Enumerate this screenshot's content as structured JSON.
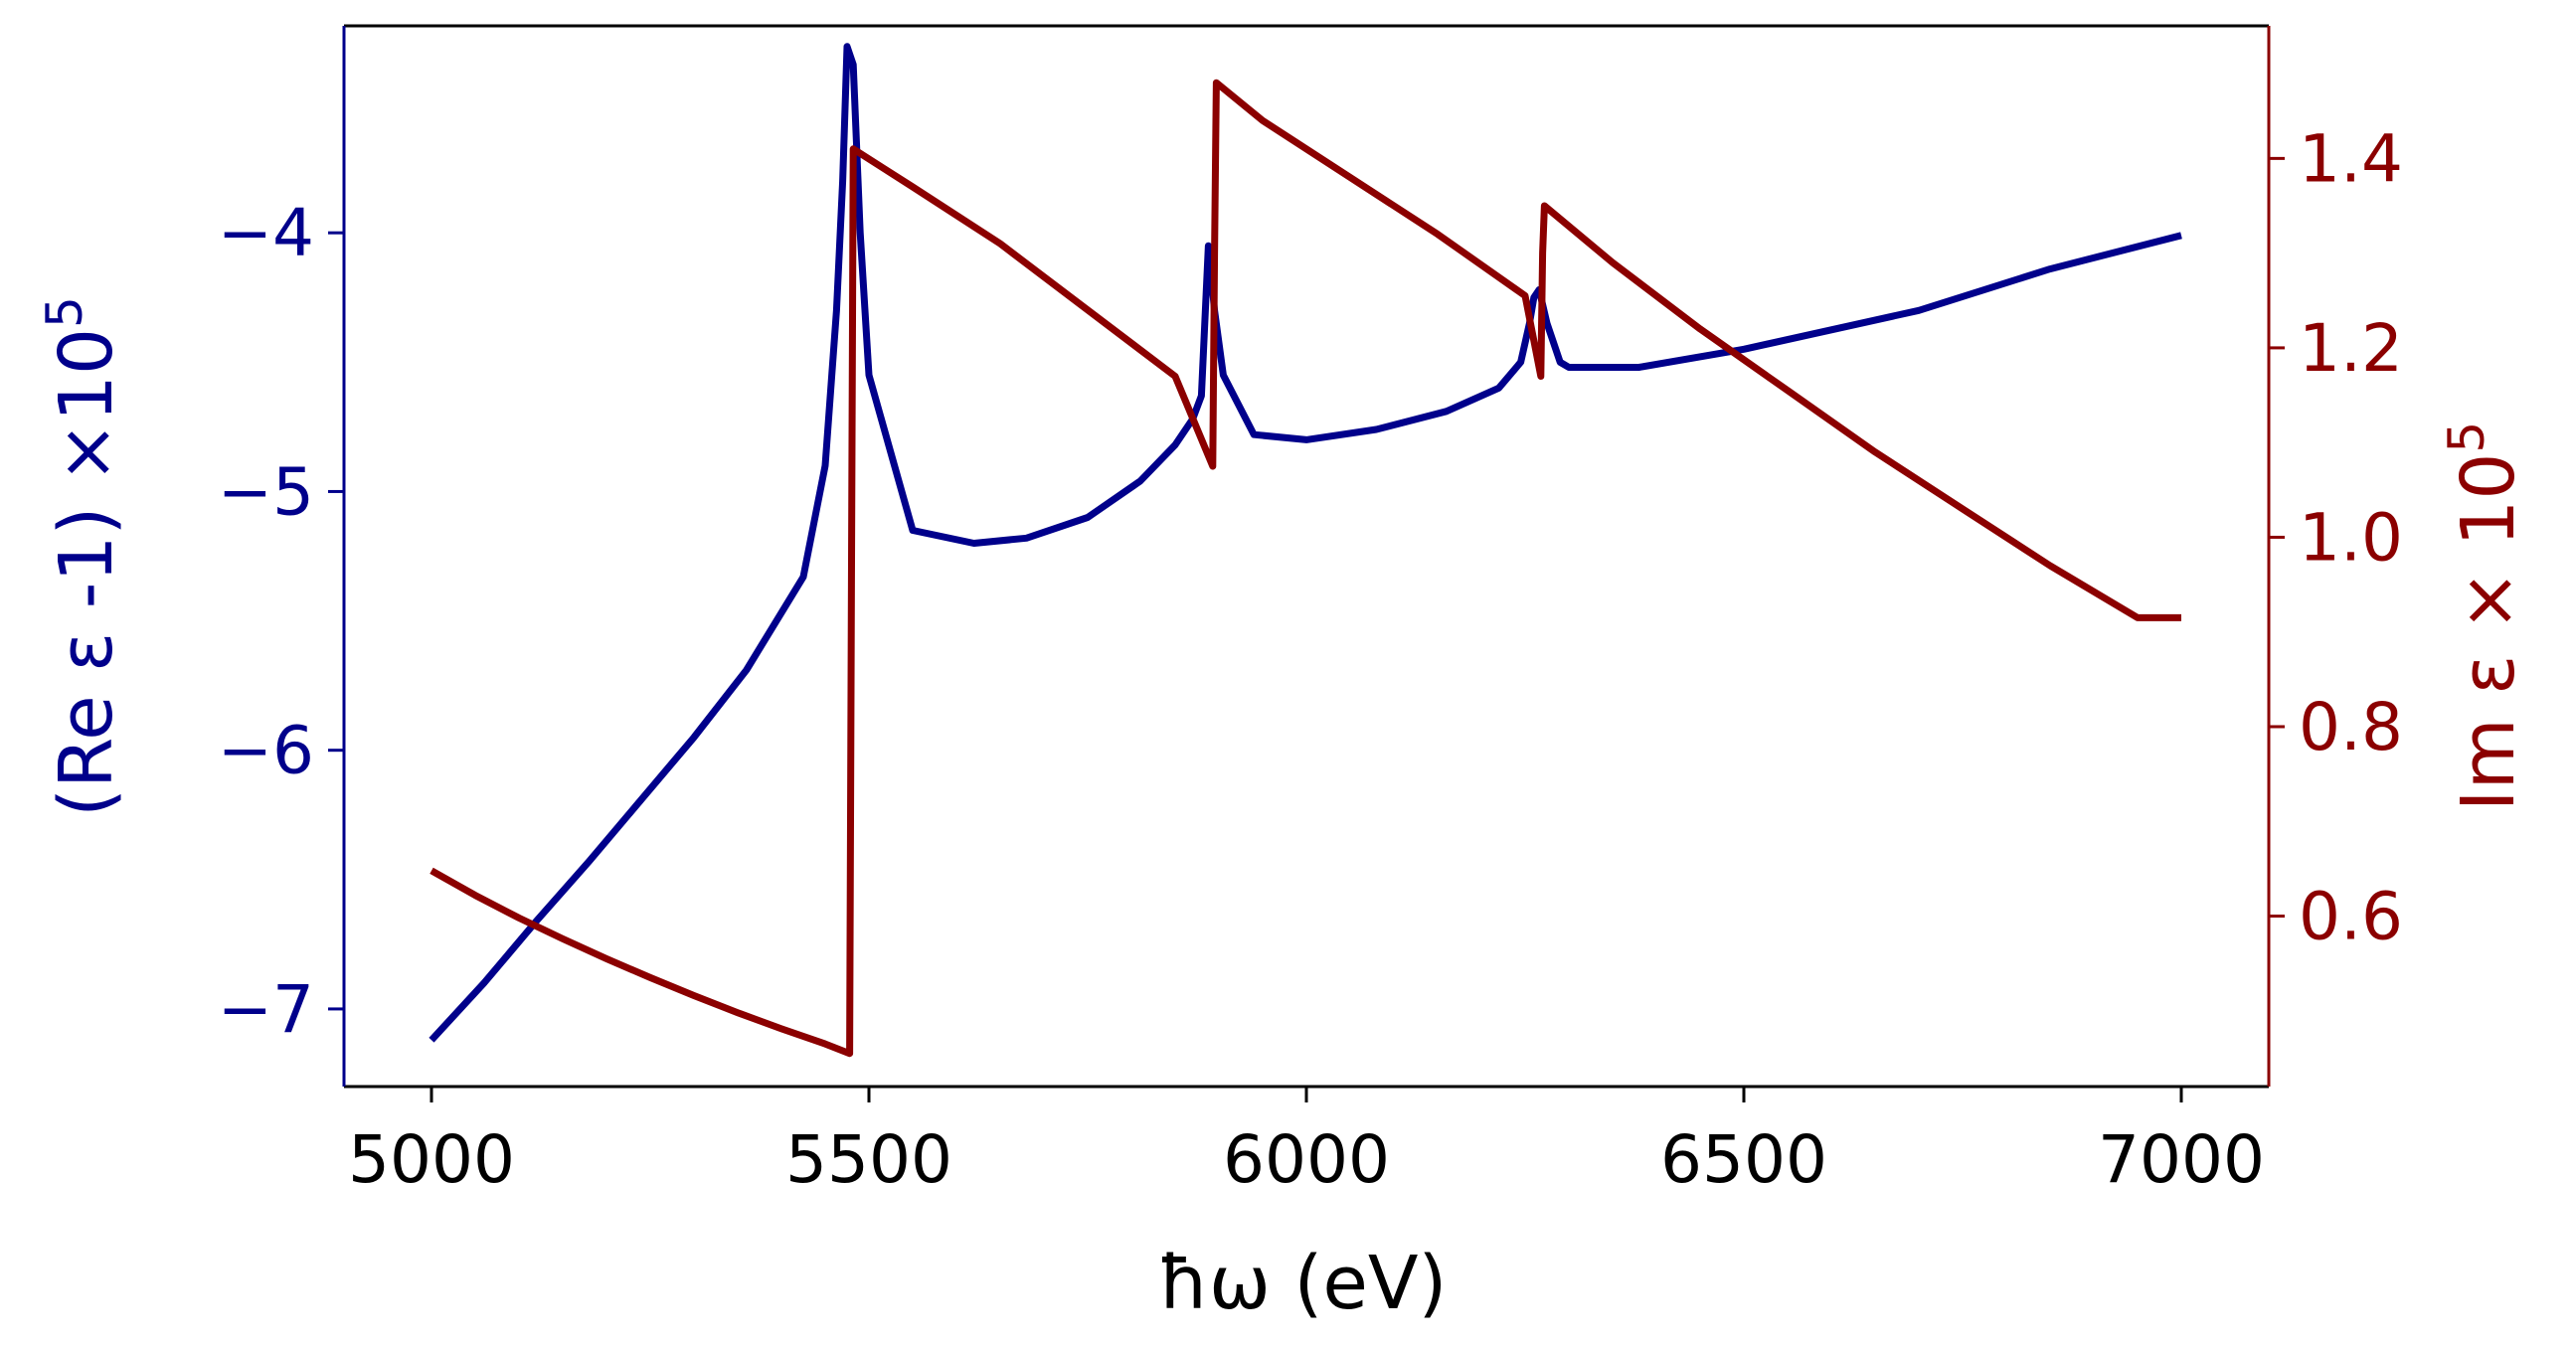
{
  "chart_data": {
    "type": "line",
    "title": "",
    "xlabel": "ħω (eV)",
    "ylabel_left": "(Re ε -1) ×10",
    "ylabel_left_exponent": "5",
    "ylabel_right": "Im ε × 10",
    "ylabel_right_exponent": "5",
    "xlim": [
      4900,
      7100
    ],
    "ylim_left": [
      -7.3,
      -3.2
    ],
    "ylim_right": [
      0.42,
      1.54
    ],
    "xticks": [
      5000,
      5500,
      6000,
      6500,
      7000
    ],
    "xtick_labels": [
      "5000",
      "5500",
      "6000",
      "6500",
      "7000"
    ],
    "yticks_left": [
      -4,
      -5,
      -6,
      -7
    ],
    "ytick_labels_left": [
      "−4",
      "−5",
      "−6",
      "−7"
    ],
    "yticks_right": [
      0.6,
      0.8,
      1.0,
      1.2,
      1.4
    ],
    "ytick_labels_right": [
      "0.6",
      "0.8",
      "1.0",
      "1.2",
      "1.4"
    ],
    "colors": {
      "left_axis": "#00008b",
      "right_axis": "#8b0000",
      "re_series": "#00008b",
      "im_series": "#8b0000",
      "frame": "#000000"
    },
    "series": [
      {
        "name": "Re ε - 1",
        "axis": "left",
        "x": [
          5000,
          5060,
          5120,
          5180,
          5240,
          5300,
          5360,
          5425,
          5450,
          5463,
          5470,
          5475,
          5482,
          5490,
          5500,
          5550,
          5620,
          5680,
          5750,
          5810,
          5850,
          5870,
          5880,
          5888,
          5895,
          5905,
          5940,
          6000,
          6080,
          6160,
          6220,
          6245,
          6255,
          6260,
          6266,
          6275,
          6290,
          6300,
          6380,
          6500,
          6700,
          6850,
          7000
        ],
        "y": [
          -7.12,
          -6.9,
          -6.66,
          -6.43,
          -6.19,
          -5.95,
          -5.69,
          -5.33,
          -4.9,
          -4.3,
          -3.8,
          -3.28,
          -3.35,
          -4.0,
          -4.55,
          -5.15,
          -5.2,
          -5.18,
          -5.1,
          -4.96,
          -4.82,
          -4.72,
          -4.63,
          -4.05,
          -4.3,
          -4.55,
          -4.78,
          -4.8,
          -4.76,
          -4.69,
          -4.6,
          -4.5,
          -4.35,
          -4.25,
          -4.22,
          -4.35,
          -4.5,
          -4.52,
          -4.52,
          -4.45,
          -4.3,
          -4.14,
          -4.01
        ]
      },
      {
        "name": "Im ε",
        "axis": "right",
        "x": [
          5000,
          5050,
          5100,
          5150,
          5200,
          5250,
          5300,
          5350,
          5400,
          5450,
          5478,
          5480,
          5482,
          5550,
          5650,
          5750,
          5850,
          5893,
          5895,
          5897,
          5950,
          6050,
          6150,
          6250,
          6268,
          6270,
          6272,
          6350,
          6450,
          6550,
          6650,
          6750,
          6850,
          6950,
          7000
        ],
        "y": [
          0.648,
          0.622,
          0.598,
          0.576,
          0.555,
          0.535,
          0.516,
          0.498,
          0.481,
          0.465,
          0.455,
          0.95,
          1.41,
          1.37,
          1.31,
          1.24,
          1.17,
          1.075,
          1.3,
          1.48,
          1.44,
          1.38,
          1.32,
          1.255,
          1.17,
          1.3,
          1.35,
          1.29,
          1.22,
          1.155,
          1.09,
          1.03,
          0.97,
          0.915,
          0.915
        ]
      }
    ]
  }
}
